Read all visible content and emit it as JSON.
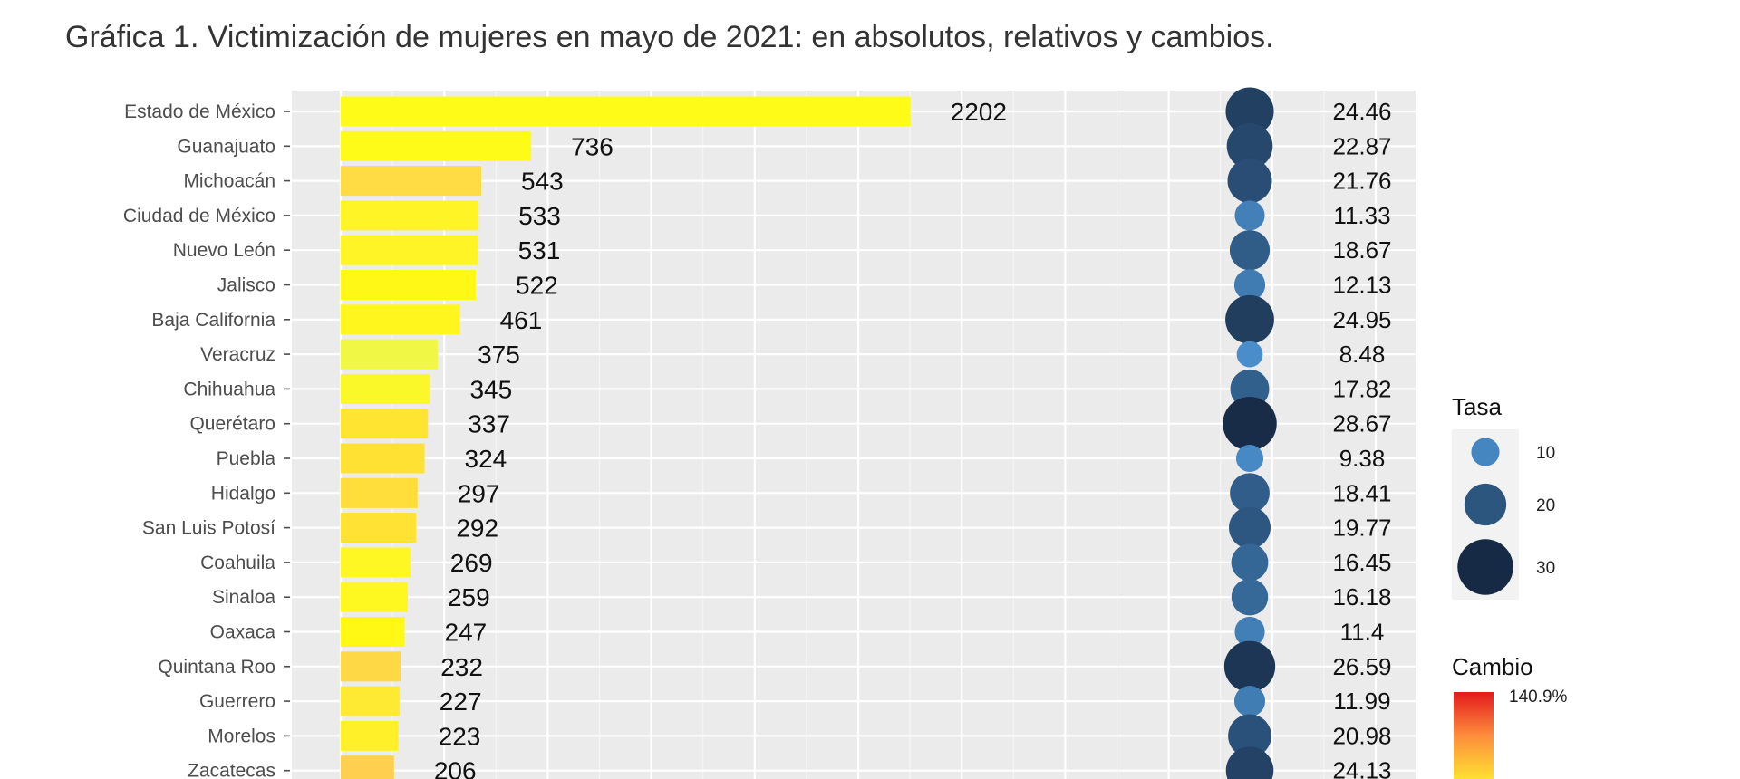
{
  "chart_data": {
    "type": "bar",
    "title": "Gráfica 1. Victimización de mujeres en mayo de 2021: en absolutos, relativos y cambios.",
    "categories": [
      "Estado de México",
      "Guanajuato",
      "Michoacán",
      "Ciudad de México",
      "Nuevo León",
      "Jalisco",
      "Baja California",
      "Veracruz",
      "Chihuahua",
      "Querétaro",
      "Puebla",
      "Hidalgo",
      "San Luis Potosí",
      "Coahuila",
      "Sinaloa",
      "Oaxaca",
      "Quintana Roo",
      "Guerrero",
      "Morelos",
      "Zacatecas"
    ],
    "values": [
      2202,
      736,
      543,
      533,
      531,
      522,
      461,
      375,
      345,
      337,
      324,
      297,
      292,
      269,
      259,
      247,
      232,
      227,
      223,
      206
    ],
    "tasa": [
      24.46,
      22.87,
      21.76,
      11.33,
      18.67,
      12.13,
      24.95,
      8.48,
      17.82,
      28.67,
      9.38,
      18.41,
      19.77,
      16.45,
      16.18,
      11.4,
      26.59,
      11.99,
      20.98,
      24.13
    ],
    "tasa_labels": [
      "24.46",
      "22.87",
      "21.76",
      "11.33",
      "18.67",
      "12.13",
      "24.95",
      "8.48",
      "17.82",
      "28.67",
      "9.38",
      "18.41",
      "19.77",
      "16.45",
      "16.18",
      "11.4",
      "26.59",
      "11.99",
      "20.98",
      "24.13"
    ],
    "bar_fill_colors": [
      "#fffb19",
      "#fffb19",
      "#ffdb44",
      "#fff526",
      "#fff526",
      "#fff715",
      "#fff61d",
      "#f1f745",
      "#fbf82a",
      "#ffe431",
      "#ffe133",
      "#ffdd3b",
      "#ffe233",
      "#fff724",
      "#fff720",
      "#fff714",
      "#ffd845",
      "#ffea33",
      "#fff02a",
      "#ffcf50"
    ],
    "legend_tasa": {
      "title": "Tasa",
      "items": [
        {
          "label": "10",
          "value": 10
        },
        {
          "label": "20",
          "value": 20
        },
        {
          "label": "30",
          "value": 30
        }
      ]
    },
    "legend_cambio": {
      "title": "Cambio",
      "max_label": "140.9%"
    },
    "colors": {
      "panel": "#ebebeb",
      "grid_major": "#ffffff",
      "grid_minor": "#f5f5f5",
      "point_low": "#4a90cd",
      "point_high": "#172a45",
      "legend_box": "#f2f2f2"
    },
    "grid": true
  }
}
